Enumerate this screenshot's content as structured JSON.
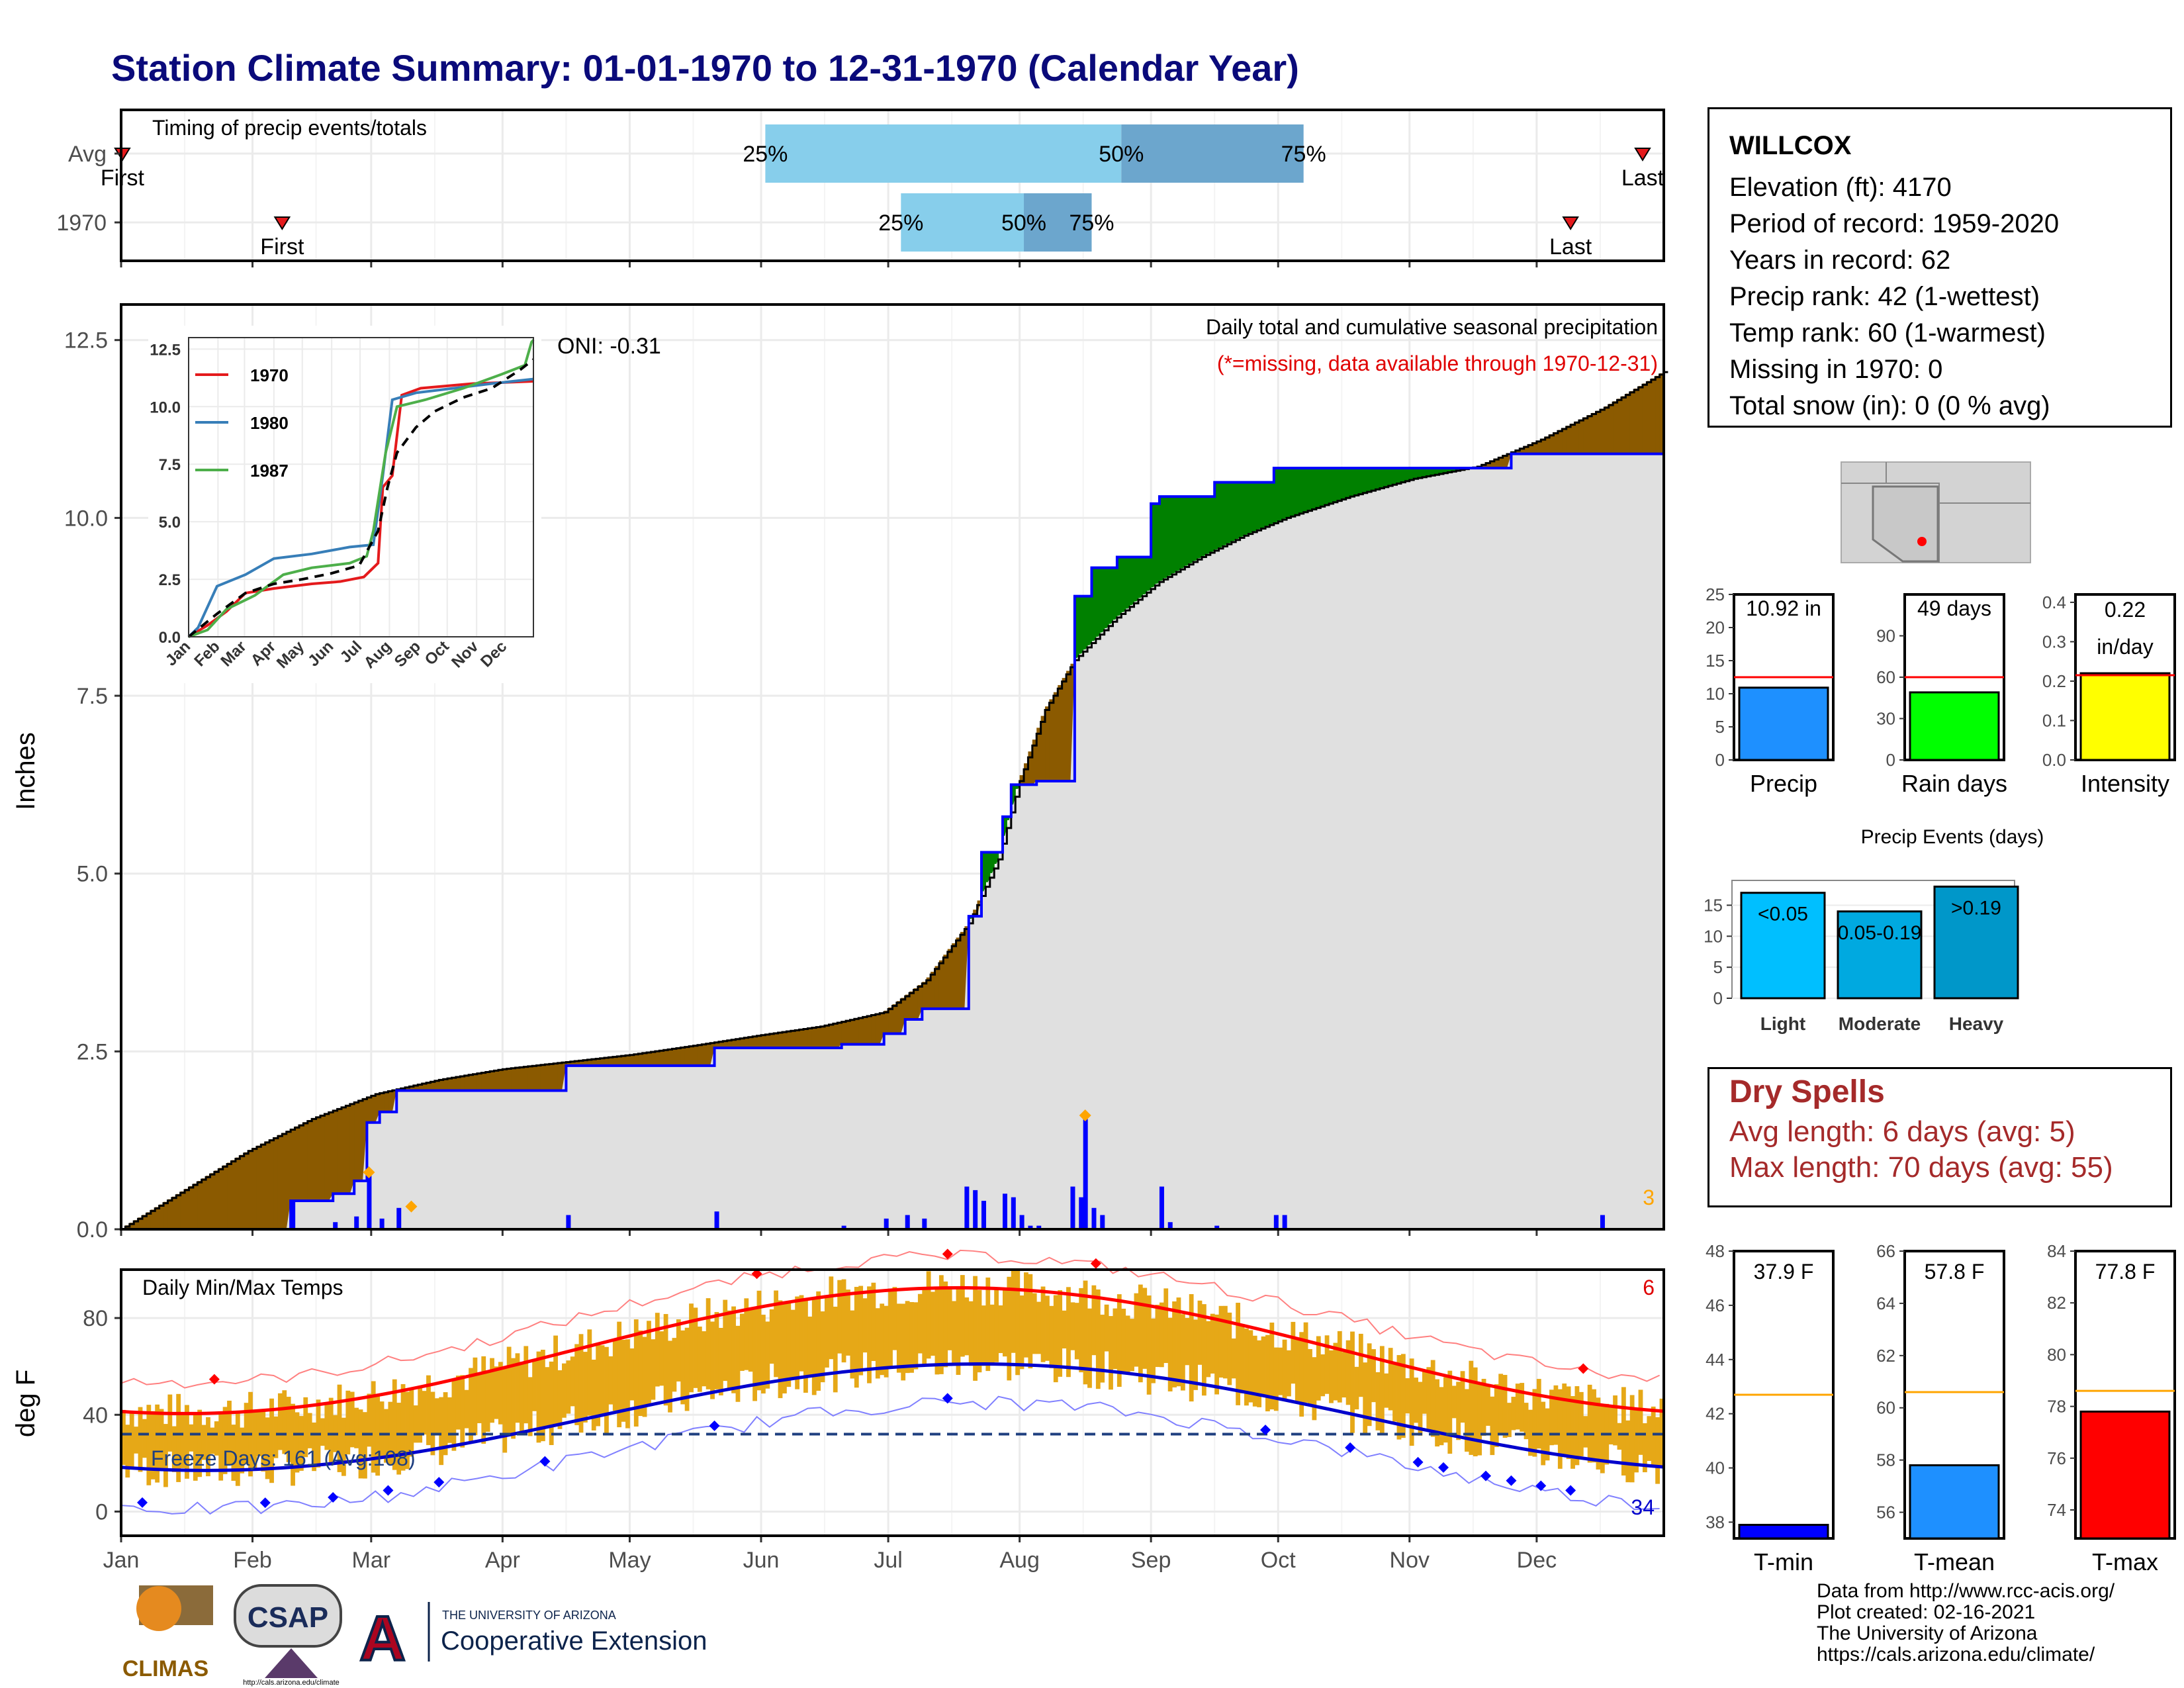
{
  "title": "Station Climate Summary: 01-01-1970 to 12-31-1970 (Calendar Year)",
  "colors": {
    "title": "#0a0a7a",
    "first_band": "#87ceeb",
    "second_band": "#6ca6cd",
    "observed_precip": "#0000ff",
    "normal_precip_fill": "#e0e0e0",
    "above_normal": "#008000",
    "below_normal": "#8b5a00",
    "tmax_line": "#ff0000",
    "tmin_line": "#0000cc",
    "temp_bars": "#e6a817",
    "freeze_line": "#1f3f7f",
    "record_marker_precip": "#ffa500"
  },
  "timing": {
    "title": "Timing of precip events/totals",
    "rows": [
      {
        "label": "Avg",
        "first": 0.3,
        "p25": 152,
        "p50": 236,
        "p75": 279,
        "last": 359,
        "first_label": "First",
        "last_label": "Last"
      },
      {
        "label": "1970",
        "first": 38,
        "p25": 184,
        "p50": 213,
        "p75": 229,
        "last": 342,
        "first_label": "First",
        "last_label": "Last"
      }
    ],
    "pct_labels": [
      "25%",
      "50%",
      "75%"
    ]
  },
  "precip": {
    "y_title": "Inches",
    "annotation_title": "Daily total and cumulative seasonal precipitation",
    "missing_note": "(*=missing, data available through 1970-12-31)",
    "oni": "ONI: -0.31",
    "missing_count": "3",
    "y_ticks": [
      "0.0",
      "2.5",
      "5.0",
      "7.5",
      "10.0",
      "12.5"
    ],
    "ylim": [
      0,
      13.0
    ],
    "normal_cumulative": [
      [
        0,
        0
      ],
      [
        15,
        0.55
      ],
      [
        30,
        1.1
      ],
      [
        45,
        1.55
      ],
      [
        60,
        1.9
      ],
      [
        75,
        2.1
      ],
      [
        90,
        2.25
      ],
      [
        105,
        2.35
      ],
      [
        120,
        2.45
      ],
      [
        135,
        2.58
      ],
      [
        150,
        2.72
      ],
      [
        165,
        2.85
      ],
      [
        180,
        3.05
      ],
      [
        190,
        3.5
      ],
      [
        200,
        4.3
      ],
      [
        207,
        5.2
      ],
      [
        212,
        6.3
      ],
      [
        218,
        7.3
      ],
      [
        225,
        8.0
      ],
      [
        235,
        8.6
      ],
      [
        245,
        9.1
      ],
      [
        255,
        9.45
      ],
      [
        265,
        9.75
      ],
      [
        275,
        10.0
      ],
      [
        290,
        10.3
      ],
      [
        305,
        10.55
      ],
      [
        320,
        10.72
      ],
      [
        335,
        11.1
      ],
      [
        350,
        11.55
      ],
      [
        364,
        12.05
      ]
    ],
    "observed_cumulative": [
      [
        0,
        0
      ],
      [
        40,
        0
      ],
      [
        40,
        0.4
      ],
      [
        50,
        0.4
      ],
      [
        50,
        0.5
      ],
      [
        55,
        0.5
      ],
      [
        55,
        0.68
      ],
      [
        58,
        0.68
      ],
      [
        58,
        1.5
      ],
      [
        61,
        1.5
      ],
      [
        61,
        1.65
      ],
      [
        65,
        1.65
      ],
      [
        65,
        1.95
      ],
      [
        105,
        1.95
      ],
      [
        105,
        2.3
      ],
      [
        140,
        2.3
      ],
      [
        140,
        2.55
      ],
      [
        170,
        2.55
      ],
      [
        170,
        2.6
      ],
      [
        180,
        2.6
      ],
      [
        180,
        2.75
      ],
      [
        185,
        2.75
      ],
      [
        185,
        2.95
      ],
      [
        189,
        2.95
      ],
      [
        189,
        3.1
      ],
      [
        200,
        3.1
      ],
      [
        200,
        4.4
      ],
      [
        203,
        4.4
      ],
      [
        203,
        5.3
      ],
      [
        208,
        5.3
      ],
      [
        208,
        5.8
      ],
      [
        210,
        5.8
      ],
      [
        210,
        6.25
      ],
      [
        216,
        6.25
      ],
      [
        216,
        6.3
      ],
      [
        225,
        6.3
      ],
      [
        225,
        8.9
      ],
      [
        229,
        8.9
      ],
      [
        229,
        9.3
      ],
      [
        235,
        9.3
      ],
      [
        235,
        9.45
      ],
      [
        243,
        9.45
      ],
      [
        243,
        10.2
      ],
      [
        245,
        10.2
      ],
      [
        245,
        10.3
      ],
      [
        258,
        10.3
      ],
      [
        258,
        10.5
      ],
      [
        272,
        10.5
      ],
      [
        272,
        10.7
      ],
      [
        328,
        10.7
      ],
      [
        328,
        10.9
      ],
      [
        364,
        10.9
      ]
    ],
    "daily_bars": [
      [
        40,
        0.4
      ],
      [
        50,
        0.1
      ],
      [
        55,
        0.18
      ],
      [
        58,
        0.8
      ],
      [
        61,
        0.15
      ],
      [
        65,
        0.3
      ],
      [
        105,
        0.2
      ],
      [
        140,
        0.25
      ],
      [
        170,
        0.05
      ],
      [
        180,
        0.15
      ],
      [
        185,
        0.2
      ],
      [
        189,
        0.15
      ],
      [
        199,
        0.6
      ],
      [
        201,
        0.55
      ],
      [
        203,
        0.4
      ],
      [
        208,
        0.5
      ],
      [
        210,
        0.45
      ],
      [
        212,
        0.2
      ],
      [
        214,
        0.05
      ],
      [
        216,
        0.05
      ],
      [
        224,
        0.6
      ],
      [
        226,
        0.45
      ],
      [
        227,
        1.55
      ],
      [
        229,
        0.3
      ],
      [
        231,
        0.2
      ],
      [
        245,
        0.6
      ],
      [
        247,
        0.1
      ],
      [
        258,
        0.05
      ],
      [
        272,
        0.2
      ],
      [
        274,
        0.2
      ],
      [
        349,
        0.2
      ]
    ],
    "record_markers": [
      [
        58,
        0.8
      ],
      [
        68,
        0.32
      ],
      [
        227,
        1.6
      ]
    ],
    "inset": {
      "y_ticks": [
        "0.0",
        "2.5",
        "5.0",
        "7.5",
        "10.0",
        "12.5"
      ],
      "months": [
        "Jan",
        "Feb",
        "Mar",
        "Apr",
        "May",
        "Jun",
        "Jul",
        "Aug",
        "Sep",
        "Oct",
        "Nov",
        "Dec"
      ],
      "series": [
        {
          "name": "1970",
          "color": "#e41a1c",
          "points": [
            [
              0,
              0
            ],
            [
              20,
              0.5
            ],
            [
              40,
              1.1
            ],
            [
              50,
              1.5
            ],
            [
              60,
              1.9
            ],
            [
              90,
              2.1
            ],
            [
              130,
              2.3
            ],
            [
              160,
              2.4
            ],
            [
              185,
              2.6
            ],
            [
              200,
              3.2
            ],
            [
              205,
              6.5
            ],
            [
              215,
              7.0
            ],
            [
              225,
              10.5
            ],
            [
              245,
              10.8
            ],
            [
              300,
              11.0
            ],
            [
              364,
              11.1
            ]
          ]
        },
        {
          "name": "1980",
          "color": "#377eb8",
          "points": [
            [
              0,
              0
            ],
            [
              10,
              0.4
            ],
            [
              30,
              2.2
            ],
            [
              60,
              2.7
            ],
            [
              90,
              3.4
            ],
            [
              130,
              3.6
            ],
            [
              170,
              3.9
            ],
            [
              195,
              4.0
            ],
            [
              205,
              7.0
            ],
            [
              215,
              10.3
            ],
            [
              240,
              10.6
            ],
            [
              280,
              10.8
            ],
            [
              320,
              11.0
            ],
            [
              364,
              11.2
            ]
          ]
        },
        {
          "name": "1987",
          "color": "#4daf4a",
          "points": [
            [
              0,
              0
            ],
            [
              20,
              0.3
            ],
            [
              40,
              1.2
            ],
            [
              70,
              1.8
            ],
            [
              100,
              2.7
            ],
            [
              130,
              3.0
            ],
            [
              170,
              3.2
            ],
            [
              188,
              3.5
            ],
            [
              195,
              4.6
            ],
            [
              208,
              8.0
            ],
            [
              220,
              10.0
            ],
            [
              250,
              10.3
            ],
            [
              290,
              10.8
            ],
            [
              330,
              11.4
            ],
            [
              355,
              11.8
            ],
            [
              362,
              12.8
            ],
            [
              364,
              12.9
            ]
          ]
        }
      ],
      "avg_points": [
        [
          0,
          0
        ],
        [
          30,
          1.0
        ],
        [
          60,
          1.9
        ],
        [
          90,
          2.3
        ],
        [
          120,
          2.5
        ],
        [
          150,
          2.75
        ],
        [
          180,
          3.1
        ],
        [
          200,
          4.6
        ],
        [
          210,
          6.5
        ],
        [
          220,
          8.0
        ],
        [
          240,
          9.1
        ],
        [
          260,
          9.8
        ],
        [
          290,
          10.4
        ],
        [
          320,
          10.8
        ],
        [
          350,
          11.6
        ],
        [
          364,
          12.05
        ]
      ]
    }
  },
  "temps": {
    "title": "Daily Min/Max Temps",
    "y_title": "deg F",
    "y_ticks": [
      "0",
      "40",
      "80"
    ],
    "ylim": [
      -10,
      100
    ],
    "freeze_label": "Freeze Days: 161 (Avg:108)",
    "freeze_level": 32,
    "max_missing": "6",
    "min_missing": "34",
    "months": [
      "Jan",
      "Feb",
      "Mar",
      "Apr",
      "May",
      "Jun",
      "Jul",
      "Aug",
      "Sep",
      "Oct",
      "Nov",
      "Dec"
    ]
  },
  "station": {
    "name": "WILLCOX",
    "lines": [
      "Elevation (ft): 4170",
      "Period of record: 1959-2020",
      "Years in record: 62",
      "Precip rank: 42 (1-wettest)",
      "Temp rank: 60 (1-warmest)",
      "Missing in 1970: 0",
      "Total snow (in): 0 (0 % avg)"
    ]
  },
  "summary_bars": [
    {
      "label": "Precip",
      "value": 10.92,
      "value_text": "10.92 in",
      "avg": 12.5,
      "max": 25,
      "ticks": [
        "0",
        "5",
        "10",
        "15",
        "20",
        "25"
      ],
      "color": "#1e90ff"
    },
    {
      "label": "Rain days",
      "value": 49,
      "value_text": "49 days",
      "avg": 60,
      "max": 120,
      "ticks": [
        "0",
        "30",
        "60",
        "90"
      ],
      "color": "#00ff00"
    },
    {
      "label": "Intensity",
      "value": 0.22,
      "value_text": "0.22\nin/day",
      "avg": 0.215,
      "max": 0.42,
      "ticks": [
        "0.0",
        "0.1",
        "0.2",
        "0.3",
        "0.4"
      ],
      "color": "#ffff00"
    }
  ],
  "events": {
    "title": "Precip Events (days)",
    "ticks": [
      "0",
      "5",
      "10",
      "15"
    ],
    "max": 19,
    "bars": [
      {
        "label": "Light",
        "bar_text": "<0.05",
        "value": 17,
        "color": "#00bfff"
      },
      {
        "label": "Moderate",
        "bar_text": "0.05-0.19",
        "value": 14,
        "color": "#00a9e0"
      },
      {
        "label": "Heavy",
        "bar_text": ">0.19",
        "value": 18,
        "color": "#0097c9"
      }
    ]
  },
  "dry_spells": {
    "title": "Dry Spells",
    "avg_length": "Avg length: 6 days (avg: 5)",
    "max_length": "Max length: 70 days (avg: 55)"
  },
  "temp_bars": [
    {
      "label": "T-min",
      "value": 37.9,
      "value_text": "37.9 F",
      "avg": 42.7,
      "min": 37.4,
      "max": 48,
      "ticks": [
        "38",
        "40",
        "42",
        "44",
        "46",
        "48"
      ],
      "color": "#0000ff"
    },
    {
      "label": "T-mean",
      "value": 57.8,
      "value_text": "57.8 F",
      "avg": 60.6,
      "min": 55,
      "max": 66,
      "ticks": [
        "56",
        "58",
        "60",
        "62",
        "64",
        "66"
      ],
      "color": "#1e90ff"
    },
    {
      "label": "T-max",
      "value": 77.8,
      "value_text": "77.8 F",
      "avg": 78.6,
      "min": 72.9,
      "max": 84,
      "ticks": [
        "74",
        "76",
        "78",
        "80",
        "82",
        "84"
      ],
      "color": "#ff0000"
    }
  ],
  "logos": {
    "climas": "CLIMAS",
    "csap": "CSAP",
    "csap_url": "http://cals.arizona.edu/climate",
    "ua_small": "THE UNIVERSITY OF ARIZONA",
    "ua_big": "Cooperative Extension",
    "ua_letter": "A"
  },
  "credits": [
    "Data from http://www.rcc-acis.org/",
    "Plot created: 02-16-2021",
    "The University of Arizona",
    "https://cals.arizona.edu/climate/"
  ]
}
